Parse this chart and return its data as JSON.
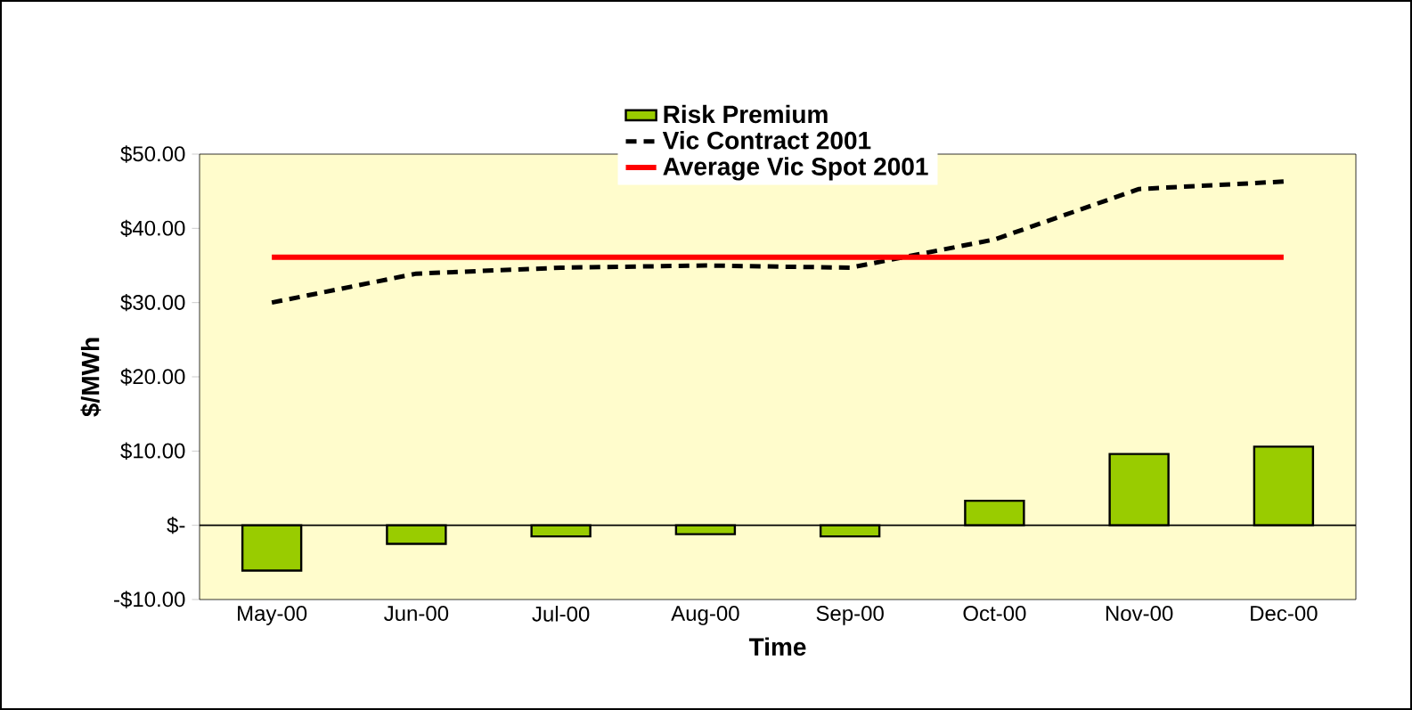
{
  "chart_data": {
    "type": "bar",
    "xlabel": "Time",
    "ylabel": "$/MWh",
    "categories": [
      "May-00",
      "Jun-00",
      "Jul-00",
      "Aug-00",
      "Sep-00",
      "Oct-00",
      "Nov-00",
      "Dec-00"
    ],
    "series": [
      {
        "name": "Risk Premium",
        "color": "#99cc00",
        "values": [
          -6.1,
          -2.5,
          -1.5,
          -1.2,
          -1.5,
          3.3,
          9.6,
          10.6
        ]
      },
      {
        "name": "Vic Contract 2001",
        "type": "line",
        "color": "#000000",
        "line_style": "dashed",
        "values": [
          30.0,
          33.9,
          34.7,
          35.0,
          34.7,
          38.5,
          45.3,
          46.3
        ]
      },
      {
        "name": "Average Vic Spot 2001",
        "type": "line",
        "color": "#ff0000",
        "line_style": "solid",
        "values": [
          36.1,
          36.1,
          36.1,
          36.1,
          36.1,
          36.1,
          36.1,
          36.1
        ]
      }
    ],
    "ylim": [
      -10,
      50
    ],
    "yticks": [
      {
        "value": -10,
        "label": "-$10.00"
      },
      {
        "value": 0,
        "label": "$-"
      },
      {
        "value": 10,
        "label": "$10.00"
      },
      {
        "value": 20,
        "label": "$20.00"
      },
      {
        "value": 30,
        "label": "$30.00"
      },
      {
        "value": 40,
        "label": "$40.00"
      },
      {
        "value": 50,
        "label": "$50.00"
      }
    ],
    "grid": false,
    "legend": "top",
    "marker": "none"
  }
}
